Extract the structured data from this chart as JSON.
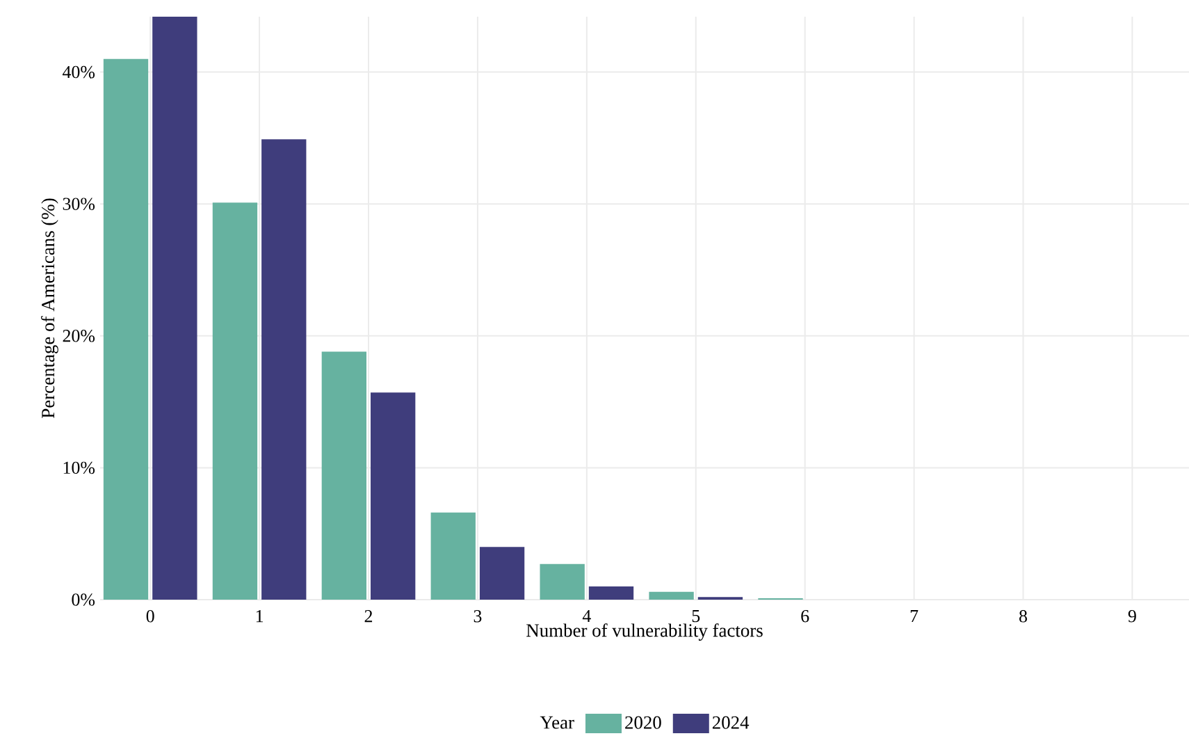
{
  "chart_data": {
    "type": "bar",
    "xlabel": "Number of vulnerability factors",
    "ylabel": "Percentage of Americans (%)",
    "legend_title": "Year",
    "categories": [
      "0",
      "1",
      "2",
      "3",
      "4",
      "5",
      "6",
      "7",
      "8",
      "9"
    ],
    "series": [
      {
        "name": "2020",
        "color": "#66b2a0",
        "values": [
          41,
          30.1,
          18.8,
          6.6,
          2.7,
          0.6,
          0.1,
          0,
          0,
          0
        ]
      },
      {
        "name": "2024",
        "color": "#3f3d7c",
        "values": [
          44.2,
          34.9,
          15.7,
          4.0,
          1.0,
          0.2,
          0,
          0,
          0,
          0
        ]
      }
    ],
    "ylim": [
      0,
      44.2
    ],
    "yticks": [
      {
        "value": 0,
        "label": "0%"
      },
      {
        "value": 10,
        "label": "10%"
      },
      {
        "value": 20,
        "label": "20%"
      },
      {
        "value": 30,
        "label": "30%"
      },
      {
        "value": 40,
        "label": "40%"
      }
    ],
    "grid": true,
    "legend": "bottom"
  }
}
